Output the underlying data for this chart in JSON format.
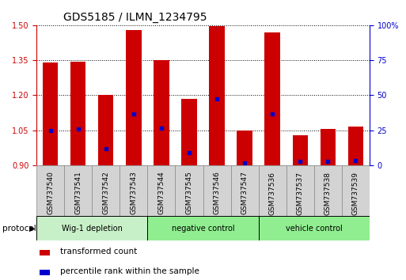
{
  "title": "GDS5185 / ILMN_1234795",
  "samples": [
    "GSM737540",
    "GSM737541",
    "GSM737542",
    "GSM737543",
    "GSM737544",
    "GSM737545",
    "GSM737546",
    "GSM737547",
    "GSM737536",
    "GSM737537",
    "GSM737538",
    "GSM737539"
  ],
  "bar_values": [
    1.34,
    1.345,
    1.2,
    1.48,
    1.35,
    1.185,
    1.495,
    1.047,
    1.47,
    1.03,
    1.055,
    1.065
  ],
  "blue_dot_values": [
    1.05,
    1.055,
    0.97,
    1.12,
    1.06,
    0.955,
    1.185,
    0.91,
    1.12,
    0.915,
    0.915,
    0.92
  ],
  "ylim": [
    0.9,
    1.5
  ],
  "yticks_left": [
    0.9,
    1.05,
    1.2,
    1.35,
    1.5
  ],
  "yticks_right": [
    0,
    25,
    50,
    75,
    100
  ],
  "bar_color": "#cc0000",
  "dot_color": "#0000cc",
  "bar_width": 0.55,
  "groups": [
    {
      "label": "Wig-1 depletion",
      "start": 0,
      "end": 4
    },
    {
      "label": "negative control",
      "start": 4,
      "end": 8
    },
    {
      "label": "vehicle control",
      "start": 8,
      "end": 12
    }
  ],
  "group_colors": [
    "#c8f0c8",
    "#90ee90",
    "#90ee90"
  ],
  "protocol_label": "protocol",
  "legend_items": [
    {
      "label": "transformed count",
      "color": "#cc0000"
    },
    {
      "label": "percentile rank within the sample",
      "color": "#0000cc"
    }
  ],
  "title_fontsize": 10,
  "tick_fontsize": 7,
  "right_axis_color": "#0000cc",
  "left_axis_color": "#cc0000",
  "sample_box_color": "#d3d3d3",
  "sample_box_border": "#888888"
}
